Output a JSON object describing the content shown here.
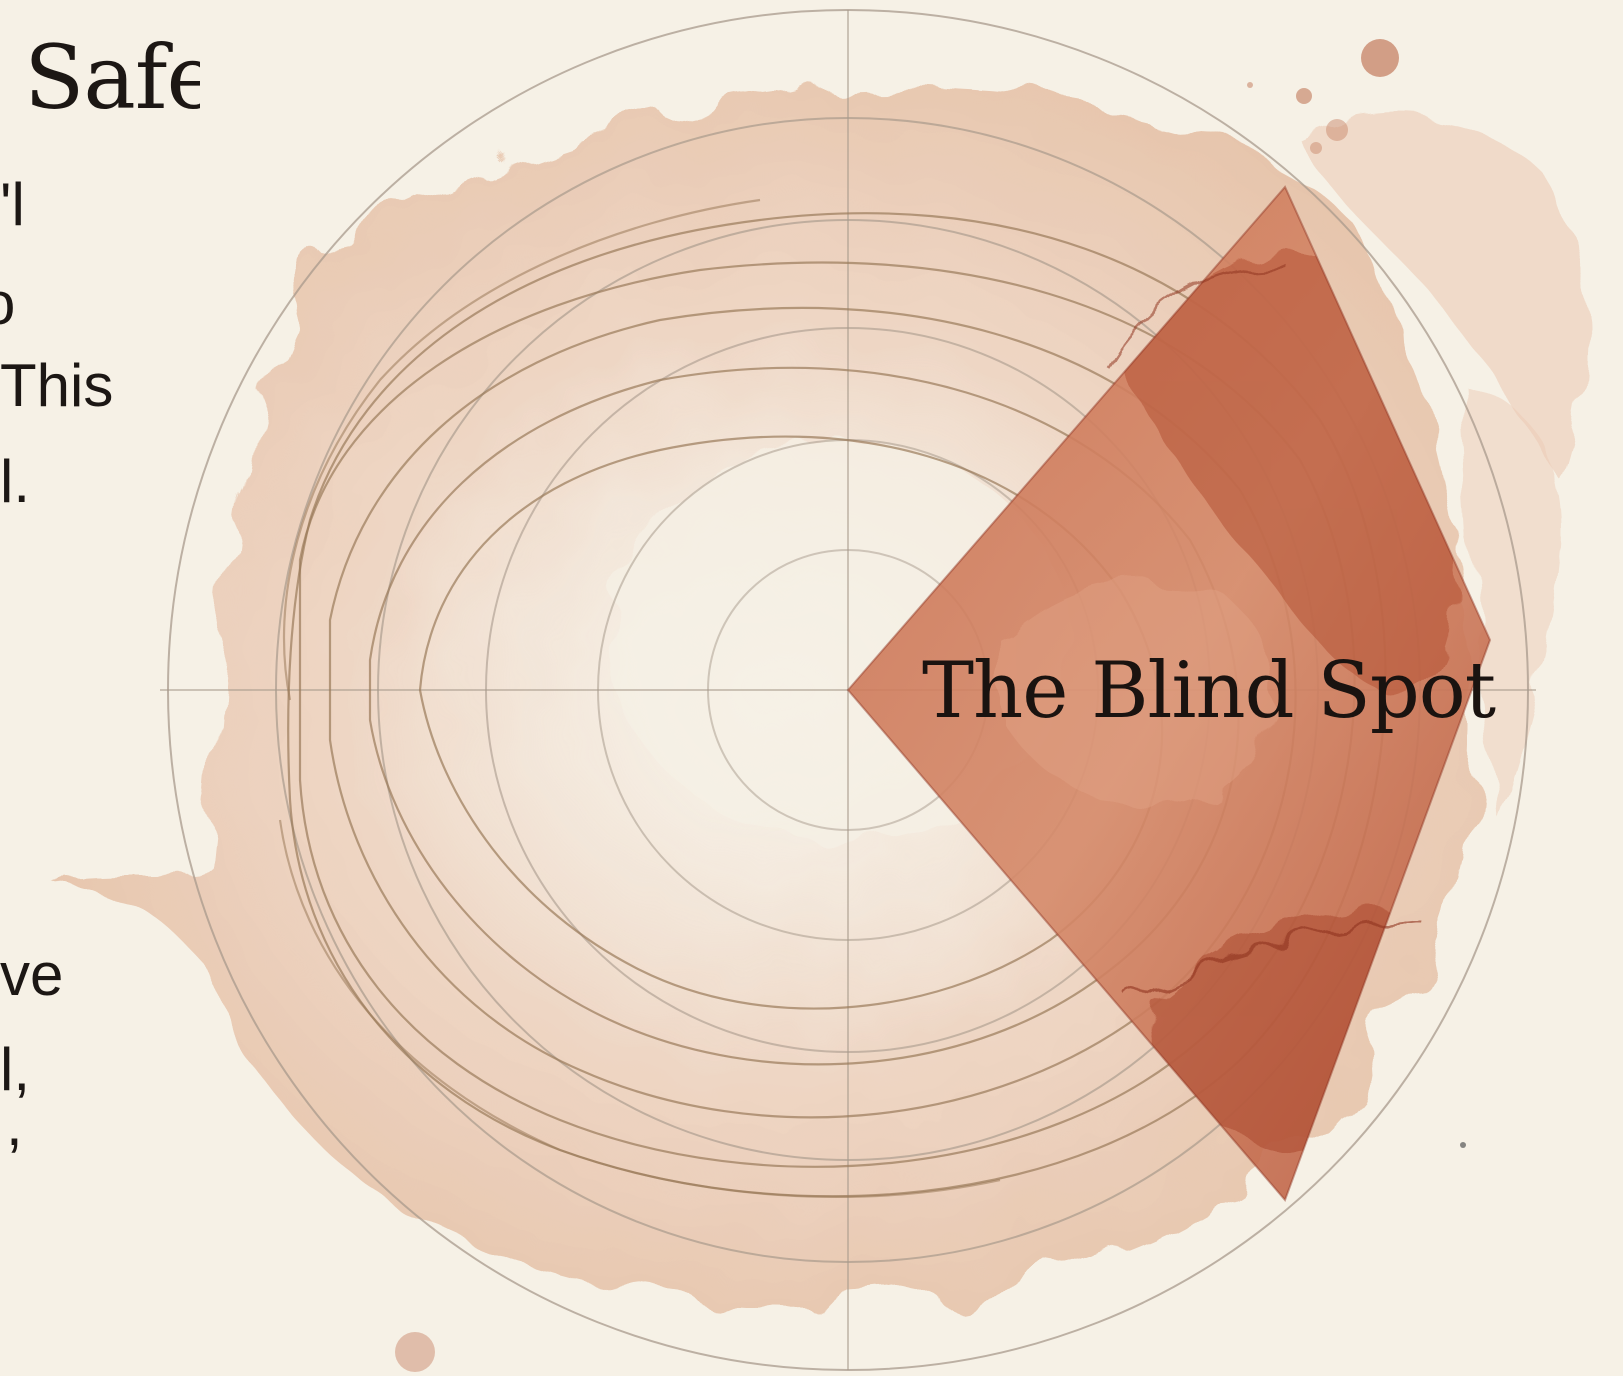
{
  "left_column": {
    "title_fragment": "l Safety",
    "text_fragments": [
      "'l",
      "o",
      "This",
      "l.",
      "ve",
      "l,",
      ","
    ]
  },
  "diagram": {
    "highlight_label": "The Blind Spot",
    "colors": {
      "paper": "#f6f1e6",
      "wash": "#e9c7b0",
      "highlight": "#c4674a",
      "highlight_dark": "#8f3421",
      "rings": "#a89a8c",
      "contour_lines": "#9a7a5a"
    }
  }
}
